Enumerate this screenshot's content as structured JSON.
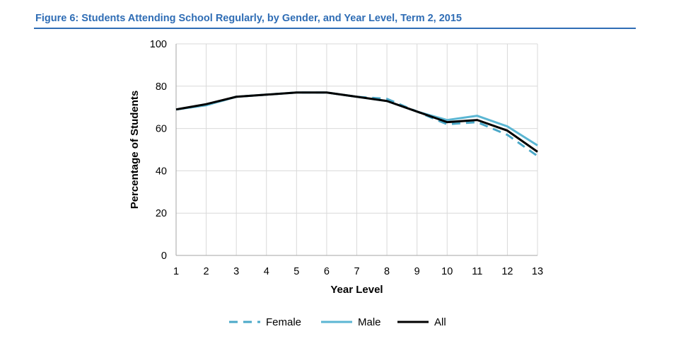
{
  "figure": {
    "title": "Figure 6: Students Attending School Regularly, by Gender, and Year Level, Term 2, 2015"
  },
  "colors": {
    "title": "#2f6db5",
    "female": "#4aa8c8",
    "male": "#5bb6d3",
    "all": "#000000",
    "grid": "#d9d9d9"
  },
  "chart_data": {
    "type": "line",
    "title": "Figure 6: Students Attending School Regularly, by Gender, and Year Level, Term 2, 2015",
    "xlabel": "Year Level",
    "ylabel": "Percentage of Students",
    "x": [
      1,
      2,
      3,
      4,
      5,
      6,
      7,
      8,
      9,
      10,
      11,
      12,
      13
    ],
    "xlim": [
      1,
      13
    ],
    "ylim": [
      0,
      100
    ],
    "yticks": [
      0,
      20,
      40,
      60,
      80,
      100
    ],
    "grid": true,
    "legend_position": "bottom",
    "series": [
      {
        "name": "Female",
        "style": "dashed",
        "values": [
          69,
          71,
          75,
          76,
          77,
          77,
          75,
          74,
          68,
          62,
          63,
          57,
          47
        ]
      },
      {
        "name": "Male",
        "style": "solid",
        "values": [
          69,
          71,
          75,
          76,
          77,
          77,
          75,
          73,
          68,
          64,
          66,
          61,
          52
        ]
      },
      {
        "name": "All",
        "style": "solid",
        "values": [
          69,
          71.5,
          75,
          76,
          77,
          77,
          75,
          73,
          68,
          63,
          64,
          59,
          49
        ]
      }
    ]
  }
}
